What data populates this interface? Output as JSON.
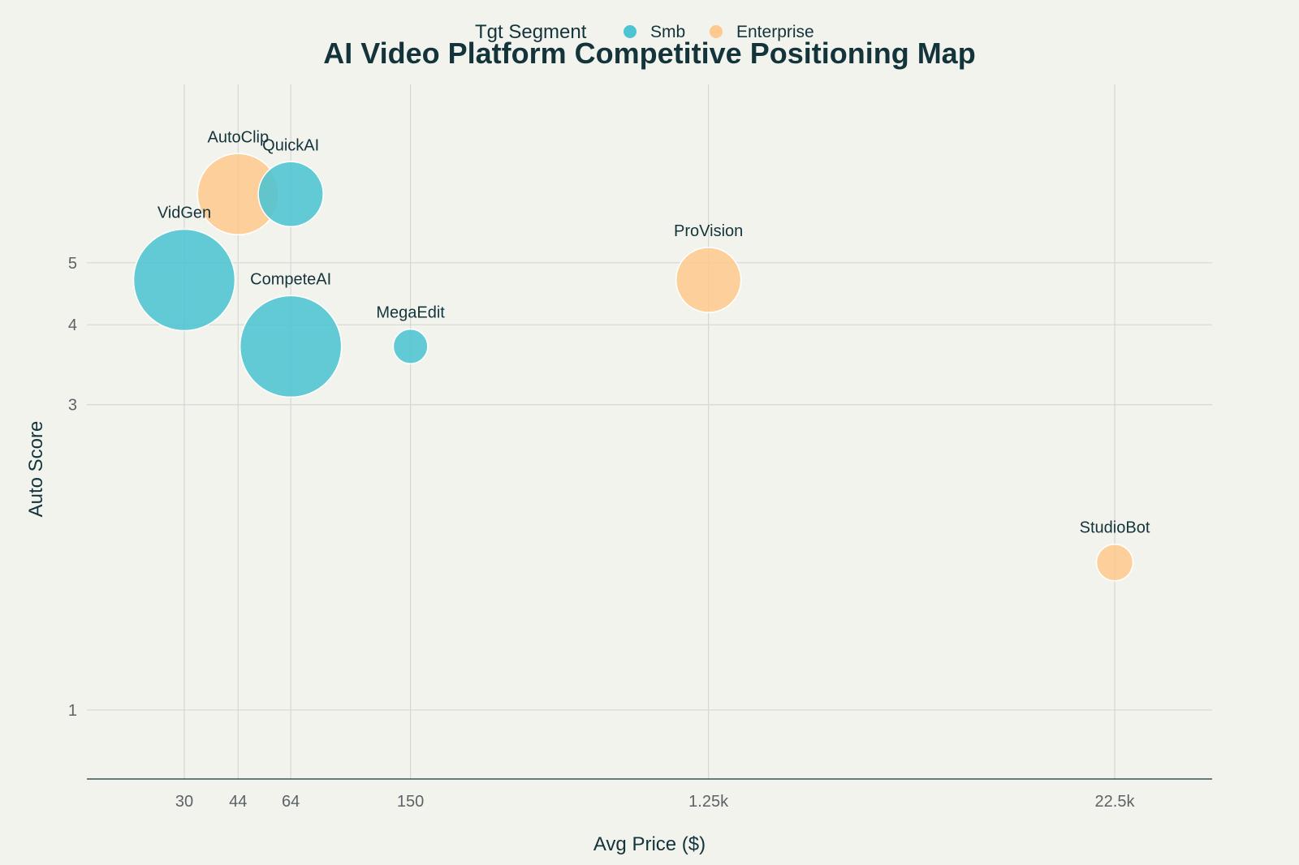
{
  "chart_data": {
    "type": "scatter",
    "title": "AI Video Platform Competitive Positioning Map",
    "xlabel": "Avg Price ($)",
    "ylabel": "Auto Score",
    "x_scale": "log",
    "y_scale": "log",
    "xlim": [
      15,
      45000
    ],
    "ylim": [
      0.78,
      9.5
    ],
    "x_ticks": [
      30,
      44,
      64,
      150,
      1250,
      22500
    ],
    "x_tick_labels": [
      "30",
      "44",
      "64",
      "150",
      "1.25k",
      "22.5k"
    ],
    "y_ticks": [
      1,
      3,
      4,
      5
    ],
    "y_tick_labels": [
      "1",
      "3",
      "4",
      "5"
    ],
    "grid": true,
    "legend": {
      "title": "Tgt Segment",
      "placement": "top-center",
      "entries": [
        {
          "name": "Smb",
          "color": "#4cc4d1"
        },
        {
          "name": "Enterprise",
          "color": "#fdc98f"
        }
      ]
    },
    "series": [
      {
        "name": "Smb",
        "color": "#4cc4d1",
        "points": [
          {
            "label": "QuickAI",
            "x": 64,
            "y": 6.4,
            "size": 3.2
          },
          {
            "label": "VidGen",
            "x": 30,
            "y": 4.7,
            "size": 5.0
          },
          {
            "label": "CompeteAI",
            "x": 64,
            "y": 3.7,
            "size": 5.0
          },
          {
            "label": "MegaEdit",
            "x": 150,
            "y": 3.7,
            "size": 1.7
          }
        ]
      },
      {
        "name": "Enterprise",
        "color": "#fdc98f",
        "points": [
          {
            "label": "AutoClip",
            "x": 44,
            "y": 6.4,
            "size": 4.0
          },
          {
            "label": "ProVision",
            "x": 1250,
            "y": 4.7,
            "size": 3.2
          },
          {
            "label": "StudioBot",
            "x": 22500,
            "y": 1.7,
            "size": 1.8
          }
        ]
      }
    ]
  }
}
